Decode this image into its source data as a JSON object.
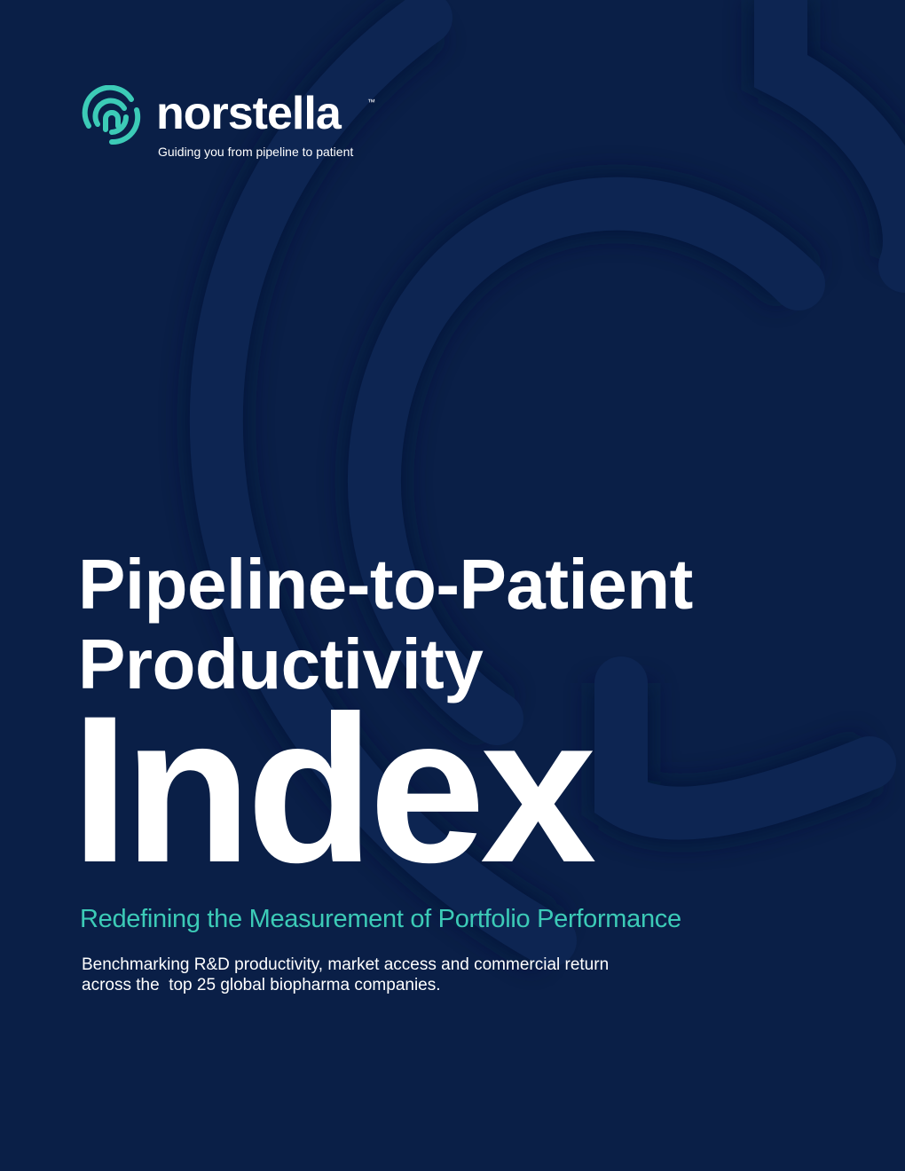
{
  "brand": {
    "name": "norstella",
    "trademark": "™",
    "tagline": "Guiding you from pipeline to patient"
  },
  "title": {
    "line1": "Pipeline-to-Patient",
    "line2": "Productivity",
    "emphasis": "Index"
  },
  "subtitle": "Redefining the Measurement of Portfolio Performance",
  "description": [
    "Benchmarking R&D productivity, market access and commercial return",
    "across the  top 25 global biopharma companies."
  ]
}
